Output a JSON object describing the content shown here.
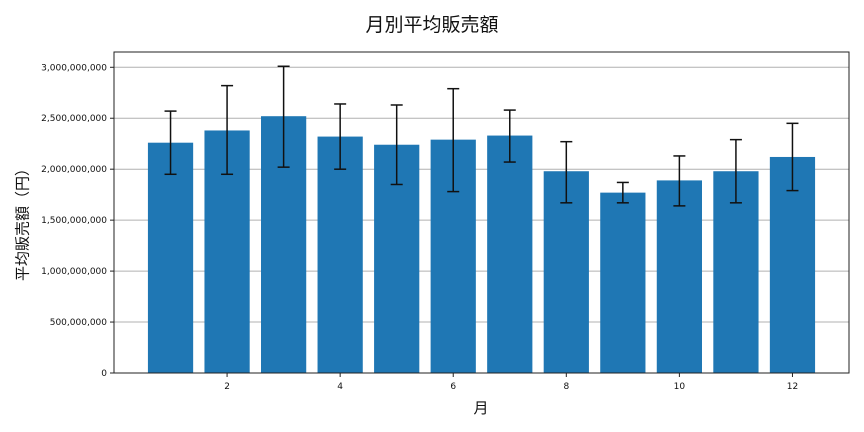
{
  "chart_data": {
    "type": "bar",
    "title": "月別平均販売額",
    "xlabel": "月",
    "ylabel": "平均販売額（円）",
    "categories": [
      1,
      2,
      3,
      4,
      5,
      6,
      7,
      8,
      9,
      10,
      11,
      12
    ],
    "values": [
      2260000000,
      2380000000,
      2520000000,
      2320000000,
      2240000000,
      2290000000,
      2330000000,
      1980000000,
      1770000000,
      1890000000,
      1980000000,
      2120000000
    ],
    "error_low": [
      1950000000,
      1950000000,
      2020000000,
      2000000000,
      1850000000,
      1780000000,
      2070000000,
      1670000000,
      1670000000,
      1640000000,
      1670000000,
      1790000000
    ],
    "error_high": [
      2570000000,
      2820000000,
      3010000000,
      2640000000,
      2630000000,
      2790000000,
      2580000000,
      2270000000,
      1870000000,
      2130000000,
      2290000000,
      2450000000
    ],
    "ylim": [
      0,
      3150000000
    ],
    "xlim": [
      0.0,
      13.0
    ],
    "yticks": [
      0,
      500000000,
      1000000000,
      1500000000,
      2000000000,
      2500000000,
      3000000000
    ],
    "ytick_labels": [
      "0",
      "500,000,000",
      "1,000,000,000",
      "1,500,000,000",
      "2,000,000,000",
      "2,500,000,000",
      "3,000,000,000"
    ],
    "xticks": [
      2,
      4,
      6,
      8,
      10,
      12
    ],
    "xtick_labels": [
      "2",
      "4",
      "6",
      "8",
      "10",
      "12"
    ],
    "grid": "y",
    "bar_color": "#1f77b4",
    "error_color": "#111111",
    "grid_color": "#b0b0b0"
  }
}
